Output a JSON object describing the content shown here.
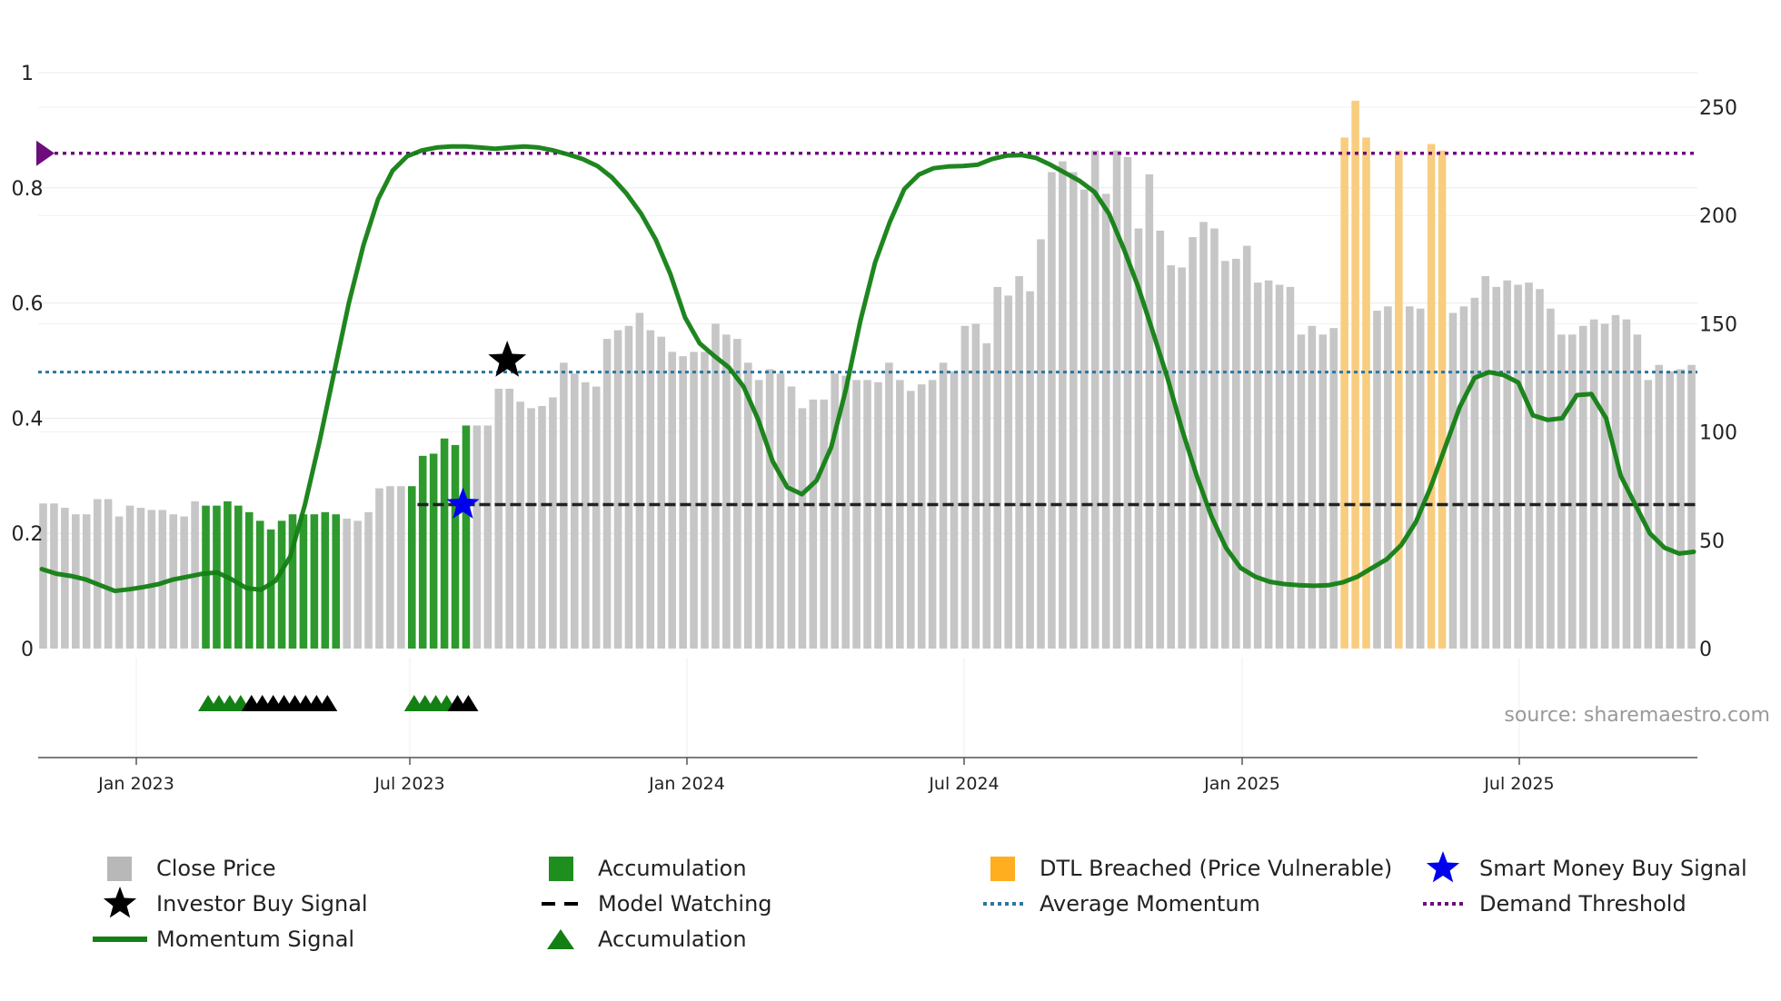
{
  "chart_data": {
    "type": "bar",
    "left_axis": {
      "ticks": [
        0,
        0.2,
        0.4,
        0.6,
        0.8
      ],
      "top_label": "1",
      "range": [
        0,
        1
      ]
    },
    "right_axis": {
      "ticks": [
        0,
        50,
        100,
        150,
        200,
        250
      ],
      "range": [
        0,
        250
      ]
    },
    "x_ticks": [
      "Jan 2023",
      "Jul 2023",
      "Jan 2024",
      "Jul 2024",
      "Jan 2025",
      "Jul 2025"
    ],
    "close_price": [
      67,
      67,
      65,
      62,
      62,
      69,
      69,
      61,
      66,
      65,
      64,
      64,
      62,
      61,
      68,
      66,
      66,
      68,
      66,
      63,
      59,
      55,
      59,
      62,
      62,
      62,
      63,
      62,
      60,
      59,
      63,
      74,
      75,
      75,
      75,
      89,
      90,
      97,
      94,
      103,
      103,
      103,
      120,
      120,
      114,
      111,
      112,
      116,
      132,
      127,
      123,
      121,
      143,
      147,
      149,
      155,
      147,
      144,
      137,
      135,
      137,
      137,
      150,
      145,
      143,
      132,
      124,
      129,
      127,
      121,
      111,
      115,
      115,
      127,
      126,
      124,
      124,
      123,
      132,
      124,
      119,
      122,
      124,
      132,
      128,
      149,
      150,
      141,
      167,
      163,
      172,
      165,
      189,
      220,
      225,
      220,
      212,
      230,
      210,
      230,
      227,
      194,
      219,
      193,
      177,
      176,
      190,
      197,
      194,
      179,
      180,
      186,
      169,
      170,
      168,
      167,
      145,
      149,
      145,
      148,
      140,
      157,
      155,
      156,
      158,
      158,
      158,
      157,
      150,
      157,
      155,
      158,
      162,
      172,
      167,
      170,
      168,
      169,
      166,
      157,
      145,
      145,
      149,
      152,
      150,
      154,
      152,
      145,
      124,
      131,
      128,
      129,
      131
    ],
    "bar_types": {
      "green_ranges": [
        [
          15,
          27
        ],
        [
          34,
          39
        ]
      ],
      "orange_ranges": [
        [
          120,
          122
        ],
        [
          125,
          125
        ],
        [
          128,
          129
        ]
      ],
      "orange_values": {
        "120": 236,
        "121": 253,
        "122": 236,
        "125": 230,
        "128": 233,
        "129": 230
      }
    },
    "momentum": [
      0.138,
      0.13,
      0.126,
      0.12,
      0.11,
      0.1,
      0.103,
      0.107,
      0.112,
      0.12,
      0.125,
      0.13,
      0.132,
      0.12,
      0.105,
      0.102,
      0.118,
      0.16,
      0.25,
      0.36,
      0.48,
      0.6,
      0.7,
      0.78,
      0.83,
      0.855,
      0.865,
      0.87,
      0.872,
      0.872,
      0.87,
      0.868,
      0.87,
      0.872,
      0.87,
      0.865,
      0.858,
      0.85,
      0.838,
      0.818,
      0.79,
      0.755,
      0.71,
      0.65,
      0.575,
      0.53,
      0.508,
      0.488,
      0.455,
      0.398,
      0.325,
      0.28,
      0.268,
      0.292,
      0.35,
      0.45,
      0.57,
      0.67,
      0.74,
      0.798,
      0.823,
      0.834,
      0.837,
      0.838,
      0.84,
      0.85,
      0.856,
      0.857,
      0.852,
      0.84,
      0.826,
      0.812,
      0.793,
      0.755,
      0.695,
      0.628,
      0.55,
      0.47,
      0.38,
      0.3,
      0.23,
      0.175,
      0.14,
      0.125,
      0.116,
      0.112,
      0.11,
      0.109,
      0.11,
      0.115,
      0.125,
      0.14,
      0.155,
      0.18,
      0.22,
      0.28,
      0.35,
      0.42,
      0.47,
      0.48,
      0.475,
      0.462,
      0.405,
      0.397,
      0.4,
      0.44,
      0.442,
      0.4,
      0.3,
      0.25,
      0.2,
      0.175,
      0.165,
      0.168
    ],
    "momentum_dates": [
      "Jan 2023",
      "",
      "Jul 2023",
      "",
      "Jan 2024",
      "",
      "Jul 2024",
      "",
      "Jan 2025",
      "",
      "Jul 2025"
    ],
    "average_momentum": 0.48,
    "demand_threshold": 0.86,
    "model_watching": 0.25,
    "investor_buy_signal": {
      "x_index": 43,
      "value": 0.5
    },
    "smart_money_buy_signal": {
      "x_index": 39,
      "value": 0.25
    },
    "accumulation_markers": {
      "green_indices": [
        15,
        16,
        17,
        18,
        34,
        35,
        36,
        37
      ],
      "black_indices": [
        19,
        20,
        21,
        22,
        23,
        24,
        25,
        26,
        38,
        39
      ]
    },
    "source_text": "source: sharemaestro.com",
    "legend": [
      {
        "label": "Close Price",
        "symbol": "square",
        "color": "#b8b8b8"
      },
      {
        "label": "Accumulation",
        "symbol": "square",
        "color": "#1e8f1e"
      },
      {
        "label": "DTL Breached (Price Vulnerable)",
        "symbol": "square",
        "color": "#ffae1f"
      },
      {
        "label": "Smart Money Buy Signal",
        "symbol": "star",
        "color": "#0000ee"
      },
      {
        "label": "Investor Buy Signal",
        "symbol": "star",
        "color": "#000000"
      },
      {
        "label": "Model Watching",
        "symbol": "dash",
        "color": "#000000"
      },
      {
        "label": "Average Momentum",
        "symbol": "dot-line",
        "color": "#2c76a0"
      },
      {
        "label": "Demand Threshold",
        "symbol": "dot-line",
        "color": "#6d0d7c"
      },
      {
        "label": "Momentum Signal",
        "symbol": "line",
        "color": "#138013"
      },
      {
        "label": "Accumulation",
        "symbol": "triangle",
        "color": "#138013"
      }
    ],
    "colors": {
      "gray": "#c6c6c6",
      "green": "#2e9a2e",
      "orange": "#f9cd7f",
      "momentum": "#138013",
      "avg": "#2c76a0",
      "demand": "#6d0d7c",
      "watch": "#222222"
    }
  }
}
